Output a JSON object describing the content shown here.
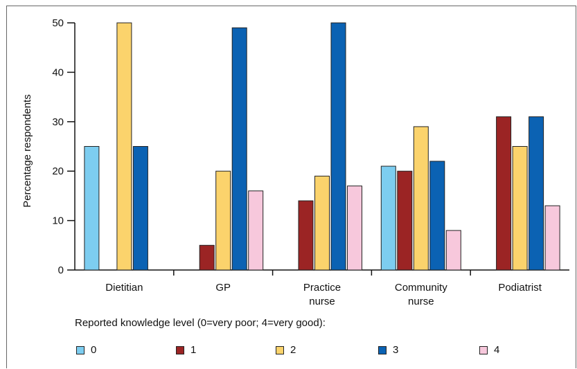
{
  "chart_data": {
    "type": "bar",
    "ylabel": "Percentage respondents",
    "ylim": [
      0,
      50
    ],
    "yticks": [
      0,
      10,
      20,
      30,
      40,
      50
    ],
    "categories": [
      [
        "Dietitian"
      ],
      [
        "GP"
      ],
      [
        "Practice",
        "nurse"
      ],
      [
        "Community",
        "nurse"
      ],
      [
        "Podiatrist"
      ]
    ],
    "legend_title": "Reported knowledge level (0=very poor; 4=very good):",
    "legend_placement": "bottom",
    "series": [
      {
        "name": "0",
        "color": "#7dcdf0",
        "values": [
          25,
          0,
          0,
          21,
          0
        ]
      },
      {
        "name": "1",
        "color": "#9b2424",
        "values": [
          0,
          5,
          14,
          20,
          31
        ]
      },
      {
        "name": "2",
        "color": "#fbd36c",
        "values": [
          50,
          20,
          19,
          29,
          25
        ]
      },
      {
        "name": "3",
        "color": "#0b62b3",
        "values": [
          25,
          49,
          50,
          22,
          31
        ]
      },
      {
        "name": "4",
        "color": "#f7c8dc",
        "values": [
          0,
          16,
          17,
          8,
          13
        ]
      }
    ]
  }
}
